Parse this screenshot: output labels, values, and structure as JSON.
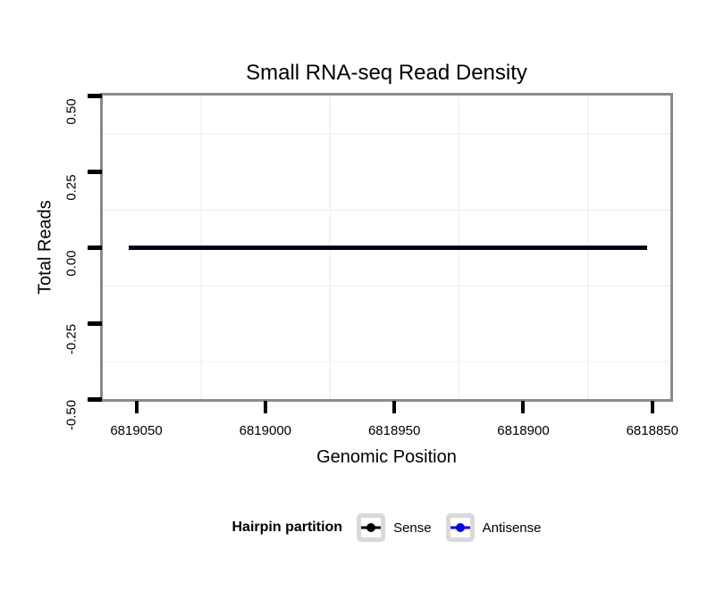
{
  "chart_data": {
    "type": "line",
    "title": "Small RNA-seq Read Density",
    "xlabel": "Genomic Position",
    "ylabel": "Total Reads",
    "x_axis": {
      "reversed": true,
      "range": [
        6819063,
        6818843
      ],
      "ticks": [
        6819050,
        6819000,
        6818950,
        6818900,
        6818850
      ],
      "tick_labels": [
        "6819050",
        "6819000",
        "6818950",
        "6818900",
        "6818850"
      ]
    },
    "y_axis": {
      "range": [
        -0.5,
        0.5
      ],
      "ticks": [
        0.5,
        0.25,
        0,
        -0.25,
        -0.5
      ],
      "tick_labels": [
        "0.50",
        "0.25",
        "0.00",
        "-0.25",
        "-0.50"
      ]
    },
    "grid": {
      "major_visible": false,
      "minor_visible": true
    },
    "series": [
      {
        "name": "Sense",
        "color": "#000000",
        "y_value": 0,
        "x_start": 6819053,
        "x_end": 6818852
      },
      {
        "name": "Antisense",
        "color": "#0000ee",
        "y_value": 0,
        "x_start": 6819053,
        "x_end": 6818852
      }
    ],
    "legend": {
      "title": "Hairpin partition",
      "position": "bottom",
      "entries": [
        {
          "label": "Sense",
          "color": "#000000"
        },
        {
          "label": "Antisense",
          "color": "#0000ee"
        }
      ]
    }
  },
  "colors": {
    "background": "#ffffff",
    "panel_border": "#8a8a8a",
    "grid_minor": "#f4f4f4",
    "axis_tick": "#000000",
    "legend_key_border": "#d9d9d9"
  }
}
